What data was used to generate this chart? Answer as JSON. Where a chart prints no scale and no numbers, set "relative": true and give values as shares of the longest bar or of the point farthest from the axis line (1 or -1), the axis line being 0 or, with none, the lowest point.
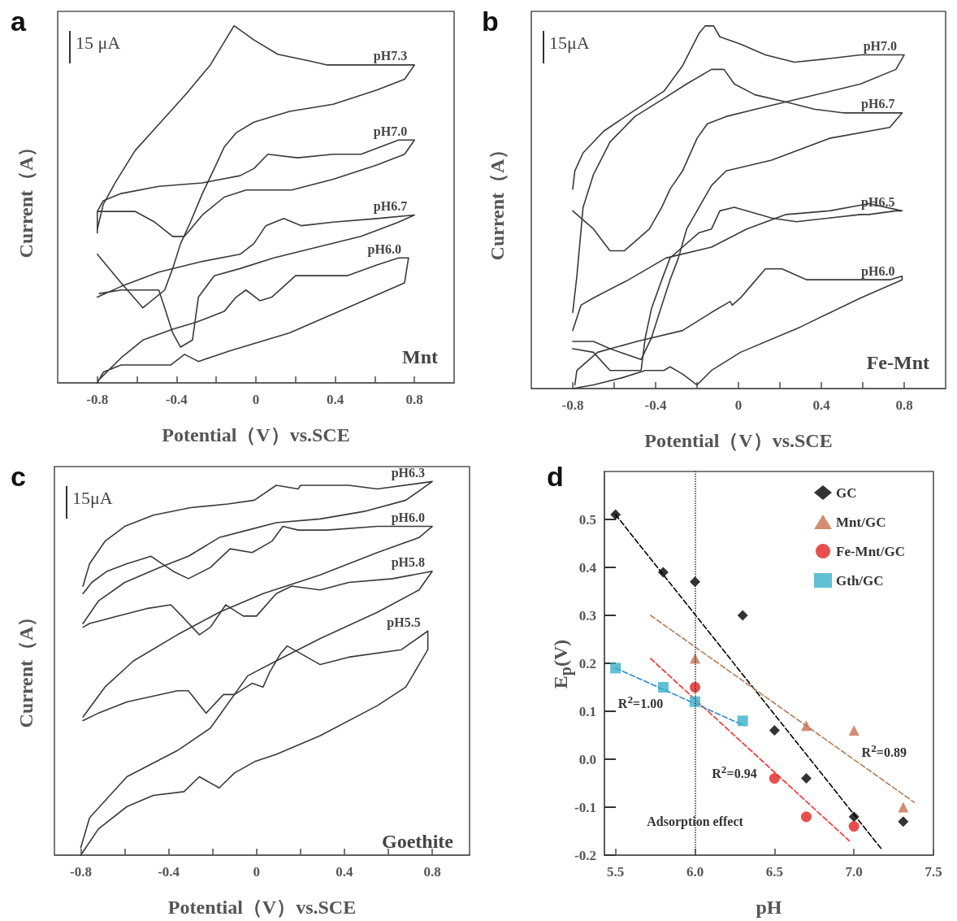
{
  "chart_data": [
    {
      "type": "line",
      "title": "a",
      "xlabel": "Potential（V）vs.SCE",
      "ylabel": "Current（A）",
      "relative": true,
      "marker": "none",
      "xlim": [
        -1.0,
        1.0
      ],
      "xticks": [
        -0.8,
        {
          "value": -0.6,
          "label": null
        },
        -0.4,
        {
          "value": -0.2,
          "label": null
        },
        0,
        {
          "value": 0.2,
          "label": null
        },
        0.4,
        {
          "value": 0.6,
          "label": null
        },
        0.8
      ],
      "annotations": [
        "15 μA",
        "Mnt"
      ],
      "series": [
        {
          "name": "pH7.3",
          "color": "#3a3a3a",
          "x": [
            -0.8,
            -0.77,
            -0.71,
            -0.61,
            -0.48,
            -0.35,
            -0.23,
            -0.11,
            -0.01,
            0.11,
            0.28,
            0.36,
            0.8,
            0.75,
            0.61,
            0.39,
            0.17,
            -0.01,
            -0.1,
            -0.16,
            -0.21,
            -0.27,
            -0.33,
            -0.38,
            -0.42,
            -0.46,
            -0.57,
            -0.68,
            -0.8
          ],
          "values": [
            0.43,
            0.5,
            0.56,
            0.65,
            0.73,
            0.81,
            0.89,
            1.0,
            0.96,
            0.92,
            0.9,
            0.89,
            0.89,
            0.85,
            0.82,
            0.78,
            0.76,
            0.73,
            0.7,
            0.66,
            0.6,
            0.53,
            0.45,
            0.39,
            0.32,
            0.26,
            0.21,
            0.28,
            0.36
          ]
        },
        {
          "name": "pH7.0",
          "color": "#3a3a3a",
          "x": [
            -0.8,
            -0.8,
            -0.74,
            -0.61,
            -0.51,
            -0.42,
            -0.36,
            -0.27,
            -0.16,
            -0.05,
            0.05,
            0.18,
            0.39,
            0.61,
            0.75,
            0.8,
            0.72,
            0.53,
            0.39,
            0.21,
            0.06,
            -0.01,
            -0.08,
            -0.27,
            -0.49,
            -0.68,
            -0.77,
            -0.8
          ],
          "values": [
            0.42,
            0.48,
            0.48,
            0.48,
            0.45,
            0.41,
            0.41,
            0.47,
            0.52,
            0.54,
            0.54,
            0.54,
            0.57,
            0.61,
            0.64,
            0.68,
            0.68,
            0.64,
            0.64,
            0.63,
            0.64,
            0.6,
            0.58,
            0.56,
            0.55,
            0.53,
            0.51,
            0.48
          ]
        },
        {
          "name": "pH6.7",
          "color": "#3a3a3a",
          "x": [
            -0.8,
            -0.68,
            -0.49,
            -0.27,
            -0.08,
            -0.01,
            0.05,
            0.14,
            0.23,
            0.39,
            0.61,
            0.8,
            0.72,
            0.53,
            0.31,
            0.09,
            -0.08,
            -0.21,
            -0.29,
            -0.32,
            -0.38,
            -0.42,
            -0.46,
            -0.49,
            -0.68,
            -0.79
          ],
          "values": [
            0.24,
            0.27,
            0.31,
            0.34,
            0.36,
            0.39,
            0.44,
            0.46,
            0.44,
            0.45,
            0.46,
            0.47,
            0.45,
            0.41,
            0.38,
            0.35,
            0.32,
            0.3,
            0.24,
            0.12,
            0.1,
            0.14,
            0.21,
            0.26,
            0.26,
            0.25
          ]
        },
        {
          "name": "pH6.0",
          "color": "#3a3a3a",
          "x": [
            -0.8,
            -0.77,
            -0.68,
            -0.43,
            -0.36,
            -0.29,
            -0.13,
            0.17,
            0.46,
            0.75,
            0.77,
            0.72,
            0.61,
            0.46,
            0.31,
            0.2,
            0.08,
            0.02,
            -0.05,
            -0.1,
            -0.16,
            -0.3,
            -0.42,
            -0.57,
            -0.68,
            -0.79
          ],
          "values": [
            0.0,
            0.03,
            0.05,
            0.05,
            0.08,
            0.06,
            0.09,
            0.14,
            0.21,
            0.28,
            0.35,
            0.35,
            0.33,
            0.3,
            0.3,
            0.3,
            0.24,
            0.23,
            0.26,
            0.24,
            0.2,
            0.17,
            0.15,
            0.12,
            0.07,
            0.01
          ]
        }
      ]
    },
    {
      "type": "line",
      "title": "b",
      "xlabel": "Potential（V）vs.SCE",
      "ylabel": "Current（A）",
      "relative": true,
      "marker": "none",
      "xlim": [
        -1.0,
        1.0
      ],
      "xticks": [
        -0.8,
        {
          "value": -0.6,
          "label": null
        },
        -0.4,
        {
          "value": -0.2,
          "label": null
        },
        0,
        {
          "value": 0.2,
          "label": null
        },
        0.4,
        {
          "value": 0.6,
          "label": null
        },
        0.8
      ],
      "annotations": [
        "15μA",
        "Fe-Mnt"
      ],
      "series": [
        {
          "name": "pH7.0",
          "color": "#3a3a3a",
          "x": [
            -0.8,
            -0.79,
            -0.75,
            -0.65,
            -0.52,
            -0.36,
            -0.27,
            -0.19,
            -0.16,
            -0.12,
            -0.09,
            0.01,
            0.13,
            0.27,
            0.44,
            0.59,
            0.8,
            0.76,
            0.59,
            0.3,
            0.08,
            -0.06,
            -0.15,
            -0.2,
            -0.27,
            -0.33,
            -0.37,
            -0.43,
            -0.55,
            -0.62,
            -0.7,
            -0.8
          ],
          "values": [
            0.55,
            0.6,
            0.65,
            0.71,
            0.76,
            0.82,
            0.89,
            0.98,
            1.0,
            1.0,
            0.97,
            0.95,
            0.92,
            0.9,
            0.91,
            0.92,
            0.92,
            0.88,
            0.84,
            0.8,
            0.77,
            0.75,
            0.73,
            0.69,
            0.6,
            0.55,
            0.5,
            0.44,
            0.38,
            0.38,
            0.44,
            0.49
          ]
        },
        {
          "name": "pH6.7",
          "color": "#3a3a3a",
          "x": [
            -0.8,
            -0.78,
            -0.75,
            -0.7,
            -0.62,
            -0.5,
            -0.36,
            -0.25,
            -0.13,
            -0.07,
            -0.02,
            0.08,
            0.23,
            0.37,
            0.51,
            0.79,
            0.73,
            0.44,
            0.16,
            -0.06,
            -0.13,
            -0.19,
            -0.25,
            -0.29,
            -0.33,
            -0.37,
            -0.42,
            -0.47,
            -0.62,
            -0.7,
            -0.8
          ],
          "values": [
            0.21,
            0.31,
            0.5,
            0.59,
            0.68,
            0.75,
            0.8,
            0.84,
            0.88,
            0.88,
            0.84,
            0.81,
            0.79,
            0.77,
            0.76,
            0.76,
            0.72,
            0.69,
            0.63,
            0.6,
            0.56,
            0.5,
            0.44,
            0.36,
            0.3,
            0.23,
            0.14,
            0.08,
            0.11,
            0.13,
            0.13
          ]
        },
        {
          "name": "pH6.5",
          "color": "#3a3a3a",
          "x": [
            -0.8,
            -0.76,
            -0.7,
            -0.53,
            -0.35,
            -0.13,
            0.04,
            0.23,
            0.44,
            0.63,
            0.79,
            0.76,
            0.63,
            0.59,
            0.28,
            0.16,
            0.1,
            -0.02,
            -0.09,
            -0.13,
            -0.19,
            -0.27,
            -0.33,
            -0.37,
            -0.42,
            -0.45,
            -0.47,
            -0.62,
            -0.7,
            -0.8
          ],
          "values": [
            0.16,
            0.23,
            0.25,
            0.3,
            0.36,
            0.39,
            0.44,
            0.48,
            0.49,
            0.51,
            0.49,
            0.49,
            0.48,
            0.48,
            0.46,
            0.47,
            0.48,
            0.5,
            0.49,
            0.44,
            0.43,
            0.39,
            0.36,
            0.3,
            0.22,
            0.14,
            0.05,
            0.05,
            0.1,
            0.11
          ]
        },
        {
          "name": "pH6.0",
          "color": "#3a3a3a",
          "x": [
            -0.8,
            -0.7,
            -0.56,
            -0.45,
            -0.36,
            -0.33,
            -0.27,
            -0.2,
            -0.13,
            0.01,
            0.3,
            0.59,
            0.79,
            0.79,
            0.73,
            0.44,
            0.33,
            0.21,
            0.13,
            0.07,
            0.01,
            -0.03,
            -0.04,
            -0.13,
            -0.27,
            -0.49,
            -0.68,
            -0.78,
            -0.79
          ],
          "values": [
            0.0,
            0.01,
            0.03,
            0.05,
            0.05,
            0.06,
            0.04,
            0.01,
            0.05,
            0.1,
            0.17,
            0.25,
            0.3,
            0.31,
            0.3,
            0.3,
            0.3,
            0.33,
            0.33,
            0.29,
            0.25,
            0.23,
            0.24,
            0.21,
            0.16,
            0.13,
            0.1,
            0.05,
            0.01
          ]
        }
      ]
    },
    {
      "type": "line",
      "title": "c",
      "xlabel": "Potential（V）vs.SCE",
      "ylabel": "Current（A）",
      "relative": true,
      "marker": "none",
      "xlim": [
        -0.92,
        0.97
      ],
      "xticks": [
        -0.8,
        {
          "value": -0.6,
          "label": null
        },
        -0.4,
        {
          "value": -0.2,
          "label": null
        },
        0,
        {
          "value": 0.2,
          "label": null
        },
        0.4,
        {
          "value": 0.6,
          "label": null
        },
        0.8
      ],
      "annotations": [
        "15μA",
        "Goethite"
      ],
      "series": [
        {
          "name": "pH6.3",
          "color": "#3a3a3a",
          "x": [
            -0.79,
            -0.76,
            -0.69,
            -0.6,
            -0.47,
            -0.3,
            -0.13,
            -0.01,
            0.09,
            0.19,
            0.2,
            0.42,
            0.55,
            0.8,
            0.68,
            0.49,
            0.29,
            0.09,
            -0.04,
            -0.17,
            -0.31,
            -0.44,
            -0.6,
            -0.72,
            -0.79
          ],
          "values": [
            0.72,
            0.78,
            0.84,
            0.88,
            0.91,
            0.93,
            0.94,
            0.95,
            0.99,
            0.98,
            0.99,
            0.99,
            0.98,
            1.0,
            0.95,
            0.92,
            0.9,
            0.89,
            0.87,
            0.85,
            0.8,
            0.77,
            0.73,
            0.68,
            0.62
          ]
        },
        {
          "name": "pH6.0",
          "color": "#3a3a3a",
          "x": [
            -0.79,
            -0.75,
            -0.68,
            -0.59,
            -0.48,
            -0.38,
            -0.31,
            -0.21,
            -0.12,
            -0.02,
            0.07,
            0.12,
            0.19,
            0.32,
            0.55,
            0.8,
            0.74,
            0.55,
            0.29,
            0.03,
            -0.17,
            -0.36,
            -0.56,
            -0.69,
            -0.79
          ],
          "values": [
            0.7,
            0.73,
            0.76,
            0.78,
            0.8,
            0.76,
            0.74,
            0.77,
            0.82,
            0.81,
            0.84,
            0.88,
            0.87,
            0.87,
            0.88,
            0.88,
            0.85,
            0.81,
            0.75,
            0.7,
            0.65,
            0.59,
            0.52,
            0.45,
            0.37
          ]
        },
        {
          "name": "pH5.8",
          "color": "#3a3a3a",
          "x": [
            -0.79,
            -0.76,
            -0.63,
            -0.5,
            -0.39,
            -0.34,
            -0.26,
            -0.21,
            -0.14,
            -0.06,
            0.0,
            0.09,
            0.16,
            0.29,
            0.42,
            0.62,
            0.8,
            0.74,
            0.55,
            0.29,
            0.09,
            -0.04,
            -0.21,
            -0.36,
            -0.59,
            -0.76,
            -0.8
          ],
          "values": [
            0.61,
            0.62,
            0.64,
            0.66,
            0.67,
            0.64,
            0.59,
            0.61,
            0.67,
            0.64,
            0.64,
            0.7,
            0.72,
            0.71,
            0.73,
            0.74,
            0.76,
            0.71,
            0.65,
            0.58,
            0.52,
            0.48,
            0.34,
            0.28,
            0.21,
            0.1,
            0.02
          ]
        },
        {
          "name": "pH5.5",
          "color": "#3a3a3a",
          "x": [
            -0.79,
            -0.72,
            -0.59,
            -0.36,
            -0.31,
            -0.23,
            -0.15,
            -0.1,
            -0.02,
            0.03,
            0.06,
            0.11,
            0.14,
            0.29,
            0.42,
            0.66,
            0.78,
            0.78,
            0.68,
            0.55,
            0.29,
            0.09,
            -0.01,
            -0.1,
            -0.17,
            -0.26,
            -0.33,
            -0.47,
            -0.59,
            -0.72,
            -0.8
          ],
          "values": [
            0.36,
            0.38,
            0.41,
            0.44,
            0.44,
            0.38,
            0.43,
            0.43,
            0.46,
            0.45,
            0.49,
            0.54,
            0.56,
            0.51,
            0.53,
            0.55,
            0.6,
            0.55,
            0.45,
            0.4,
            0.32,
            0.27,
            0.25,
            0.22,
            0.18,
            0.21,
            0.17,
            0.16,
            0.13,
            0.07,
            0.0
          ]
        }
      ]
    },
    {
      "type": "scatter",
      "title": "d",
      "xlabel": "pH",
      "ylabel": "E$_{p}$(V)",
      "xlim": [
        5.43,
        7.5
      ],
      "ylim": [
        -0.2,
        0.6
      ],
      "xticks": [
        5.5,
        {
          "value": 6,
          "label": "6.0"
        },
        6.5,
        {
          "value": 7,
          "label": "7.0"
        },
        7.5
      ],
      "yticks": [
        -0.2,
        -0.1,
        {
          "value": 0,
          "label": "0.0"
        },
        0.1,
        0.2,
        0.3,
        0.4,
        0.5
      ],
      "legend": "top right",
      "ref_lines": [
        {
          "axis": "x",
          "value": 6,
          "color": "#333333",
          "line_style": "dotted"
        }
      ],
      "annotations": [
        {
          "text": "Adsorption effect",
          "x": 6.0,
          "y": -0.13
        },
        "R$^{2}$=1.00",
        "R$^{2}$=0.94",
        "R$^{2}$=0.89"
      ],
      "series": [
        {
          "type": "line",
          "marker": "none",
          "line_style": "dashed",
          "color": "#000000",
          "x": [
            5.5,
            7.18
          ],
          "values": [
            0.51,
            -0.19
          ]
        },
        {
          "type": "line",
          "marker": "none",
          "line_style": "dashed",
          "color": "#b57a55",
          "x": [
            5.72,
            7.38
          ],
          "values": [
            0.3,
            -0.09
          ]
        },
        {
          "type": "line",
          "marker": "none",
          "line_style": "dashed",
          "color": "#ff2a2a",
          "x": [
            5.72,
            6.97
          ],
          "values": [
            0.21,
            -0.17
          ]
        },
        {
          "type": "line",
          "marker": "none",
          "line_style": "dashed",
          "color": "#2a8ad0",
          "x": [
            5.5,
            6.31
          ],
          "values": [
            0.19,
            0.07
          ]
        },
        {
          "name": "GC",
          "type": "scatter",
          "marker": "diamond",
          "color": "#000000",
          "x": [
            5.5,
            5.8,
            6.0,
            6.3,
            6.5,
            6.7,
            7.0,
            7.31
          ],
          "values": [
            0.51,
            0.39,
            0.37,
            0.3,
            0.06,
            -0.04,
            -0.12,
            -0.13
          ]
        },
        {
          "name": "Mnt/GC",
          "type": "scatter",
          "marker": "triangle",
          "color": "#c8704f",
          "x": [
            6.0,
            6.7,
            7.0,
            7.31
          ],
          "values": [
            0.21,
            0.07,
            0.06,
            -0.1
          ]
        },
        {
          "name": "Fe-Mnt/GC",
          "type": "scatter",
          "marker": "circle",
          "color": "#e32222",
          "x": [
            6.0,
            6.5,
            6.7,
            7.0
          ],
          "values": [
            0.15,
            -0.04,
            -0.12,
            -0.14
          ]
        },
        {
          "name": "Gth/GC",
          "type": "scatter",
          "marker": "square",
          "color": "#3bb0c9",
          "x": [
            5.5,
            5.8,
            6.0,
            6.3
          ],
          "values": [
            0.19,
            0.15,
            0.12,
            0.08
          ]
        }
      ]
    }
  ]
}
